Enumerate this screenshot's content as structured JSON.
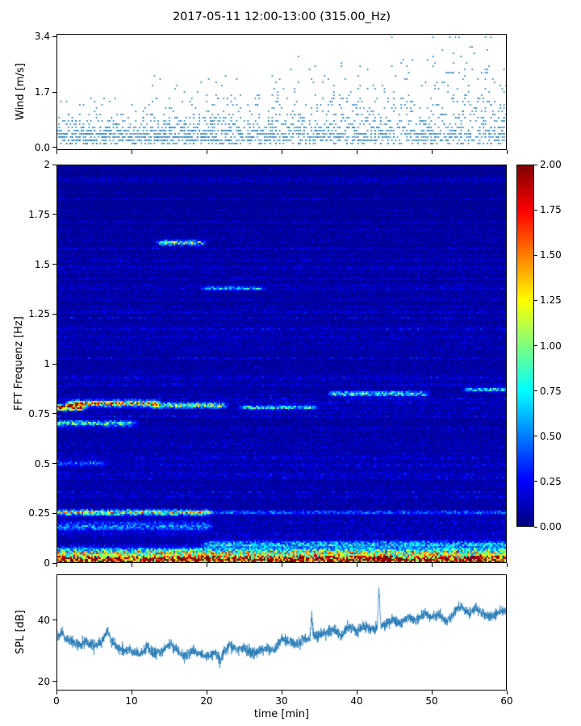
{
  "title": "2017-05-11 12:00-13:00 (315.00_Hz)",
  "xlabel": "time [min]",
  "x_axis": {
    "lim": [
      0,
      60
    ],
    "ticks": [
      0,
      10,
      20,
      30,
      40,
      50,
      60
    ],
    "labels": [
      "0",
      "10",
      "20",
      "30",
      "40",
      "50",
      "60"
    ]
  },
  "colors": {
    "accent": "#1f77b4",
    "axes": "#000000",
    "background": "#ffffff"
  },
  "chart_data": [
    {
      "type": "scatter",
      "name": "wind",
      "ylabel": "Wind [m/s]",
      "xlim": [
        0,
        60
      ],
      "ylim": [
        -0.08,
        3.48
      ],
      "yticks": [
        0.0,
        1.7,
        3.4
      ],
      "ytick_labels": [
        "0.0",
        "1.7",
        "3.4"
      ],
      "marker_color": "#1f77b4",
      "n_points": 1900,
      "seed": 42,
      "y_quantum": 0.1,
      "x_quantum": 0.25
    },
    {
      "type": "heatmap",
      "name": "fft-spectrogram",
      "ylabel": "FFT Frequenz [Hz]",
      "xlim": [
        0,
        60
      ],
      "ylim": [
        0,
        2
      ],
      "yticks": [
        0,
        0.25,
        0.5,
        0.75,
        1,
        1.25,
        1.5,
        1.75,
        2
      ],
      "ytick_labels": [
        "0",
        "0.25",
        "0.5",
        "0.75",
        "1",
        "1.25",
        "1.5",
        "1.75",
        "2"
      ],
      "colormap": "jet",
      "clim": [
        0,
        2
      ],
      "colorbar_ticks": [
        0,
        0.25,
        0.5,
        0.75,
        1,
        1.25,
        1.5,
        1.75,
        2
      ],
      "colorbar_tick_labels": [
        "0.00",
        "0.25",
        "0.50",
        "0.75",
        "1.00",
        "1.25",
        "1.50",
        "1.75",
        "2.00"
      ],
      "seed": 1234,
      "background_level": 0.12,
      "bands": [
        {
          "f": 0.012,
          "fw": 0.02,
          "t0": 0,
          "t1": 60,
          "amp": 2.3
        },
        {
          "f": 0.05,
          "fw": 0.02,
          "t0": 0,
          "t1": 60,
          "amp": 1.0
        },
        {
          "f": 0.09,
          "fw": 0.018,
          "t0": 20,
          "t1": 60,
          "amp": 0.55
        },
        {
          "f": 0.18,
          "fw": 0.02,
          "t0": 0,
          "t1": 20,
          "amp": 0.4
        },
        {
          "f": 0.25,
          "fw": 0.013,
          "t0": 0,
          "t1": 20,
          "amp": 1.1
        },
        {
          "f": 0.25,
          "fw": 0.01,
          "t0": 20,
          "t1": 60,
          "amp": 0.3
        },
        {
          "f": 0.5,
          "fw": 0.01,
          "t0": 0,
          "t1": 6,
          "amp": 0.35
        },
        {
          "f": 0.7,
          "fw": 0.013,
          "t0": 0,
          "t1": 10,
          "amp": 0.75
        },
        {
          "f": 0.78,
          "fw": 0.013,
          "t0": 0,
          "t1": 3,
          "amp": 2.0
        },
        {
          "f": 0.8,
          "fw": 0.014,
          "t0": 2,
          "t1": 13,
          "amp": 1.35
        },
        {
          "f": 0.79,
          "fw": 0.012,
          "t0": 13,
          "t1": 22,
          "amp": 0.9
        },
        {
          "f": 0.78,
          "fw": 0.01,
          "t0": 25,
          "t1": 34,
          "amp": 0.7
        },
        {
          "f": 0.85,
          "fw": 0.012,
          "t0": 37,
          "t1": 49,
          "amp": 0.75
        },
        {
          "f": 0.87,
          "fw": 0.01,
          "t0": 55,
          "t1": 60,
          "amp": 0.65
        },
        {
          "f": 1.61,
          "fw": 0.012,
          "t0": 14,
          "t1": 19,
          "amp": 0.9
        },
        {
          "f": 1.38,
          "fw": 0.009,
          "t0": 20,
          "t1": 27,
          "amp": 0.55
        }
      ]
    },
    {
      "type": "line",
      "name": "spl",
      "ylabel": "SPL [dB]",
      "xlim": [
        0,
        60
      ],
      "ylim": [
        17,
        55
      ],
      "yticks": [
        20,
        40
      ],
      "ytick_labels": [
        "20",
        "40"
      ],
      "line_color": "#1f77b4",
      "seed": 7,
      "noise_amp": 1.9,
      "control_points": [
        [
          0,
          34
        ],
        [
          0.5,
          36
        ],
        [
          1,
          34
        ],
        [
          2,
          33
        ],
        [
          3,
          32
        ],
        [
          4,
          33
        ],
        [
          5,
          31
        ],
        [
          6,
          33
        ],
        [
          6.8,
          37
        ],
        [
          7.2,
          33
        ],
        [
          8,
          31
        ],
        [
          9,
          30
        ],
        [
          10,
          30
        ],
        [
          11,
          29
        ],
        [
          12,
          31
        ],
        [
          13,
          29
        ],
        [
          14,
          30
        ],
        [
          15,
          32
        ],
        [
          16,
          30
        ],
        [
          17,
          28
        ],
        [
          18,
          30
        ],
        [
          19,
          29
        ],
        [
          20,
          28
        ],
        [
          21,
          29
        ],
        [
          21.8,
          27
        ],
        [
          23,
          32
        ],
        [
          24,
          30
        ],
        [
          25,
          31
        ],
        [
          26,
          29
        ],
        [
          27,
          30
        ],
        [
          28,
          31
        ],
        [
          29,
          30
        ],
        [
          30,
          34
        ],
        [
          31,
          33
        ],
        [
          32,
          32
        ],
        [
          33,
          34
        ],
        [
          33.8,
          34
        ],
        [
          34,
          41
        ],
        [
          34.3,
          35
        ],
        [
          35,
          35
        ],
        [
          36,
          36
        ],
        [
          37,
          37
        ],
        [
          38,
          35
        ],
        [
          39,
          38
        ],
        [
          40,
          36
        ],
        [
          41,
          38
        ],
        [
          42,
          37
        ],
        [
          42.8,
          38
        ],
        [
          43,
          50
        ],
        [
          43.3,
          38
        ],
        [
          44,
          39
        ],
        [
          45,
          40
        ],
        [
          46,
          39
        ],
        [
          47,
          41
        ],
        [
          48,
          40
        ],
        [
          49,
          42
        ],
        [
          50,
          41
        ],
        [
          51,
          42
        ],
        [
          52,
          40
        ],
        [
          53,
          42
        ],
        [
          54,
          45
        ],
        [
          55,
          42
        ],
        [
          56,
          44
        ],
        [
          57,
          42
        ],
        [
          58,
          41
        ],
        [
          59,
          43
        ],
        [
          60,
          43
        ]
      ]
    }
  ]
}
